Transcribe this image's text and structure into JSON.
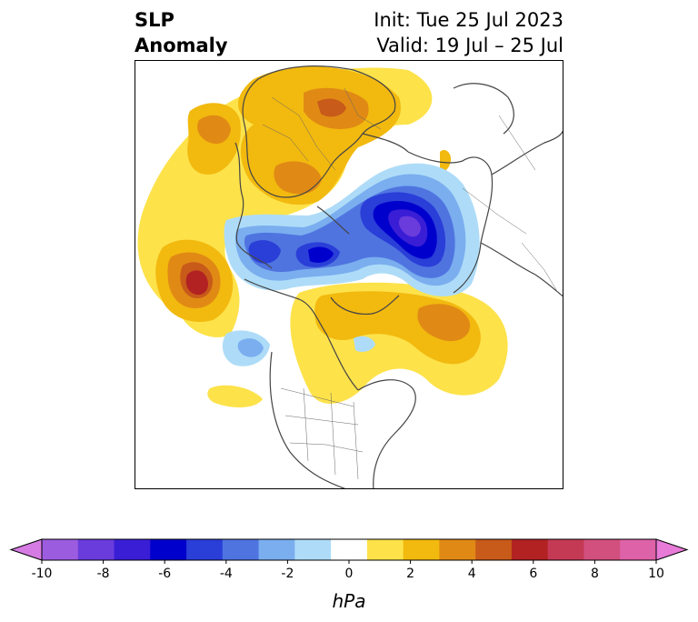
{
  "title": {
    "left_line1": "SLP",
    "left_line2": "Anomaly",
    "init": "Init: Tue 25 Jul 2023",
    "valid": "Valid: 19 Jul – 25 Jul"
  },
  "colorbar": {
    "unit": "hPa",
    "min": -10,
    "max": 10,
    "tick_labels": [
      "-10",
      "-8",
      "-6",
      "-4",
      "-2",
      "0",
      "2",
      "4",
      "6",
      "8",
      "10"
    ],
    "colors": [
      "#d67be3",
      "#9c5ce0",
      "#6a3cdc",
      "#3a1ed6",
      "#0000cd",
      "#2a3ed8",
      "#4f74e0",
      "#7aaeef",
      "#aedcf8",
      "#ffffff",
      "#fde24a",
      "#f2b90f",
      "#e08a15",
      "#c85a1a",
      "#b22222",
      "#c43a55",
      "#d2507d",
      "#dd62a8",
      "#e87ad8"
    ]
  },
  "map": {
    "projection": "north-polar-stereographic",
    "colors": {
      "yellow": "#fde24a",
      "gold": "#f2b90f",
      "orange": "#e08a15",
      "darkorange": "#c85a1a",
      "red": "#b22222",
      "lightblue": "#aedcf8",
      "midblue": "#7aaeef",
      "blue": "#4f74e0",
      "royal": "#2a3ed8",
      "navy": "#0000cd",
      "indigo": "#3a1ed6",
      "violet": "#6a3cdc",
      "purple": "#9c5ce0",
      "coast": "#444444"
    }
  }
}
